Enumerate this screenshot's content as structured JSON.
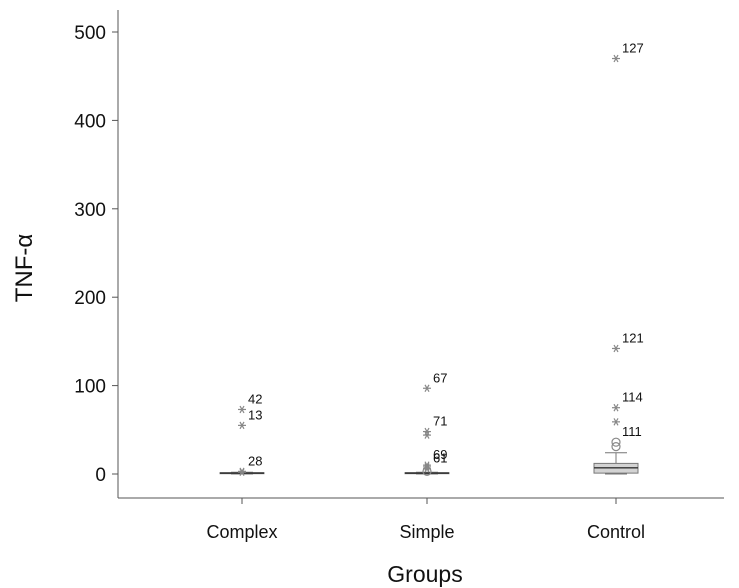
{
  "chart_data": {
    "type": "boxplot",
    "xlabel": "Groups",
    "ylabel": "TNF-α",
    "ylim": [
      0,
      500
    ],
    "yticks": [
      0,
      100,
      200,
      300,
      400,
      500
    ],
    "categories": [
      "Complex",
      "Simple",
      "Control"
    ],
    "groups": [
      {
        "name": "Complex",
        "box": {
          "q1": 0.5,
          "median": 1,
          "q3": 1.5,
          "whisker_low": 0,
          "whisker_high": 2
        },
        "outliers": [
          {
            "id": "42",
            "value": 73,
            "marker": "star"
          },
          {
            "id": "13",
            "value": 55,
            "marker": "star"
          },
          {
            "id": "28",
            "value": 3,
            "marker": "star"
          }
        ],
        "extra_markers": [
          {
            "value": 2,
            "marker": "star"
          }
        ]
      },
      {
        "name": "Simple",
        "box": {
          "q1": 0.5,
          "median": 1,
          "q3": 1.5,
          "whisker_low": 0,
          "whisker_high": 2
        },
        "outliers": [
          {
            "id": "67",
            "value": 97,
            "marker": "star"
          },
          {
            "id": "71",
            "value": 48,
            "marker": "star"
          },
          {
            "id": "69",
            "value": 10,
            "marker": "star"
          },
          {
            "id": "61",
            "value": 6,
            "marker": "star"
          }
        ],
        "extra_markers": [
          {
            "value": 44,
            "marker": "star"
          },
          {
            "value": 8,
            "marker": "star"
          },
          {
            "value": 3,
            "marker": "circle"
          }
        ]
      },
      {
        "name": "Control",
        "box": {
          "q1": 1,
          "median": 7,
          "q3": 12,
          "whisker_low": 0,
          "whisker_high": 24
        },
        "outliers": [
          {
            "id": "127",
            "value": 470,
            "marker": "star"
          },
          {
            "id": "121",
            "value": 142,
            "marker": "star"
          },
          {
            "id": "114",
            "value": 75,
            "marker": "star"
          },
          {
            "id": "111",
            "value": 36,
            "marker": "circle"
          }
        ],
        "extra_markers": [
          {
            "value": 59,
            "marker": "star"
          },
          {
            "value": 31,
            "marker": "circle"
          }
        ]
      }
    ],
    "grid": false,
    "colors": {
      "box_fill": "#d3d3d3",
      "box_stroke": "#777777",
      "marker": "#888888",
      "axis": "#555555",
      "text": "#111111"
    }
  }
}
